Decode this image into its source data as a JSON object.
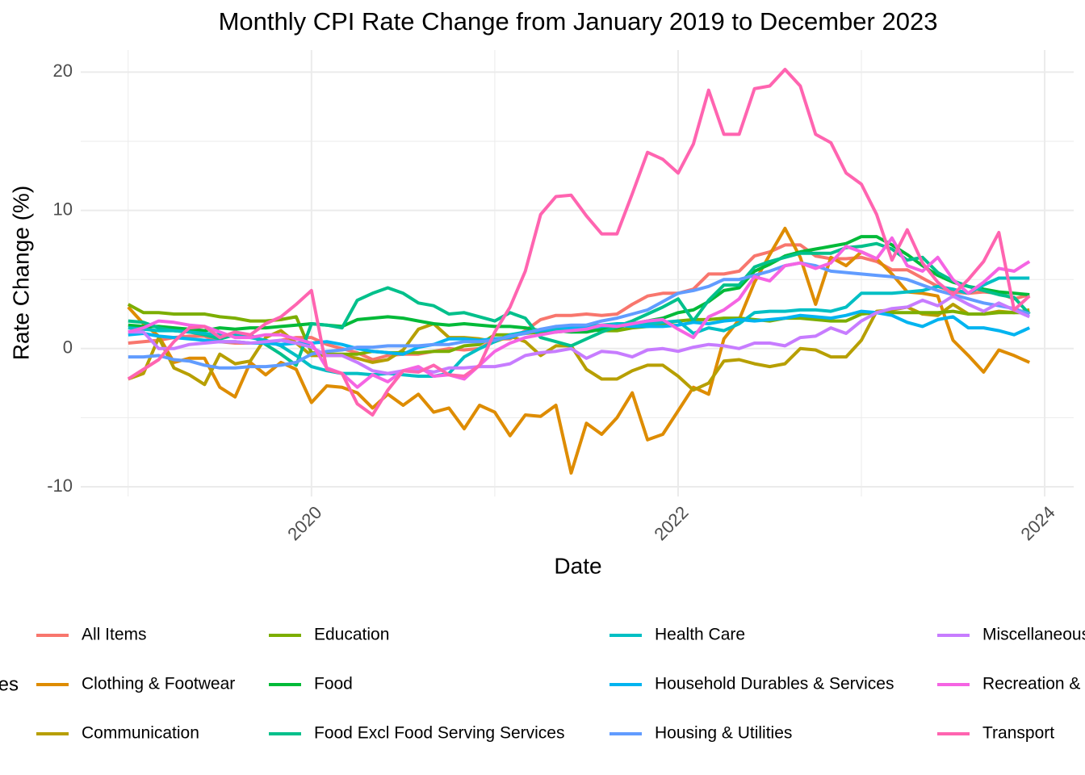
{
  "chart_data": {
    "type": "line",
    "title": "Monthly CPI Rate Change from January 2019 to December 2023",
    "x_label": "Date",
    "y_label": "Rate Change (%)",
    "legend_title": "Categories",
    "legend_position": "bottom",
    "grid": true,
    "xlim": [
      "2018-10",
      "2024-02"
    ],
    "ylim": [
      -10.7,
      21.6
    ],
    "xticks": [
      {
        "value": "2020-01",
        "label": "2020"
      },
      {
        "value": "2022-01",
        "label": "2022"
      },
      {
        "value": "2024-01",
        "label": "2024"
      }
    ],
    "x_minor_ticks": [
      "2019-01",
      "2021-01",
      "2023-01"
    ],
    "yticks": [
      -10,
      0,
      10,
      20
    ],
    "y_minor_ticks": [
      -5,
      5,
      15
    ],
    "x": [
      "2019-01",
      "2019-02",
      "2019-03",
      "2019-04",
      "2019-05",
      "2019-06",
      "2019-07",
      "2019-08",
      "2019-09",
      "2019-10",
      "2019-11",
      "2019-12",
      "2020-01",
      "2020-02",
      "2020-03",
      "2020-04",
      "2020-05",
      "2020-06",
      "2020-07",
      "2020-08",
      "2020-09",
      "2020-10",
      "2020-11",
      "2020-12",
      "2021-01",
      "2021-02",
      "2021-03",
      "2021-04",
      "2021-05",
      "2021-06",
      "2021-07",
      "2021-08",
      "2021-09",
      "2021-10",
      "2021-11",
      "2021-12",
      "2022-01",
      "2022-02",
      "2022-03",
      "2022-04",
      "2022-05",
      "2022-06",
      "2022-07",
      "2022-08",
      "2022-09",
      "2022-10",
      "2022-11",
      "2022-12",
      "2023-01",
      "2023-02",
      "2023-03",
      "2023-04",
      "2023-05",
      "2023-06",
      "2023-07",
      "2023-08",
      "2023-09",
      "2023-10",
      "2023-11",
      "2023-12"
    ],
    "series": [
      {
        "name": "All Items",
        "color": "#F8766D",
        "values": [
          0.4,
          0.5,
          0.6,
          0.8,
          0.9,
          0.9,
          0.5,
          0.4,
          0.4,
          0.4,
          0.6,
          0.8,
          0.8,
          0.3,
          0.0,
          -0.3,
          -0.8,
          -0.5,
          -0.4,
          -0.4,
          -0.2,
          0.0,
          -0.1,
          0.0,
          0.7,
          0.7,
          1.3,
          2.1,
          2.4,
          2.4,
          2.5,
          2.4,
          2.5,
          3.2,
          3.8,
          4.0,
          4.0,
          4.3,
          5.4,
          5.4,
          5.6,
          6.7,
          7.0,
          7.5,
          7.5,
          6.7,
          6.5,
          6.5,
          6.6,
          6.3,
          5.7,
          5.7,
          5.1,
          4.5,
          4.1,
          4.0,
          4.1,
          4.0,
          3.6,
          3.9
        ]
      },
      {
        "name": "Clothing & Footwear",
        "color": "#DE8C00",
        "values": [
          3.0,
          1.8,
          0.9,
          -1.0,
          -0.7,
          -0.7,
          -2.8,
          -3.5,
          -1.0,
          -1.9,
          -1.0,
          -1.5,
          -3.9,
          -2.7,
          -2.8,
          -3.2,
          -4.3,
          -3.3,
          -4.1,
          -3.3,
          -4.6,
          -4.3,
          -5.8,
          -4.1,
          -4.6,
          -6.3,
          -4.8,
          -4.9,
          -4.1,
          -9.0,
          -5.4,
          -6.2,
          -5.0,
          -3.2,
          -6.6,
          -6.2,
          -4.5,
          -2.8,
          -3.3,
          0.7,
          2.1,
          4.8,
          6.8,
          8.7,
          6.6,
          3.2,
          6.6,
          6.0,
          7.0,
          6.5,
          5.4,
          4.1,
          4.0,
          3.8,
          0.6,
          -0.5,
          -1.7,
          -0.1,
          -0.5,
          -1.0
        ]
      },
      {
        "name": "Communication",
        "color": "#B79F00",
        "values": [
          -2.2,
          -1.8,
          0.8,
          -1.4,
          -1.9,
          -2.6,
          -0.4,
          -1.1,
          -0.9,
          0.8,
          1.3,
          0.4,
          -0.5,
          -0.5,
          -0.5,
          -0.7,
          -1.0,
          -0.8,
          -0.1,
          1.4,
          1.8,
          0.8,
          0.8,
          0.7,
          0.5,
          0.9,
          0.5,
          -0.5,
          0.2,
          0.2,
          -1.5,
          -2.2,
          -2.2,
          -1.6,
          -1.2,
          -1.2,
          -2.0,
          -3.0,
          -2.5,
          -0.9,
          -0.8,
          -1.1,
          -1.3,
          -1.1,
          0.0,
          -0.1,
          -0.6,
          -0.6,
          0.6,
          2.7,
          2.8,
          3.0,
          2.5,
          2.4,
          3.2,
          2.5,
          2.5,
          2.7,
          2.6,
          2.8
        ]
      },
      {
        "name": "Education",
        "color": "#7CAE00",
        "values": [
          3.2,
          2.6,
          2.6,
          2.5,
          2.5,
          2.5,
          2.3,
          2.2,
          2.0,
          2.0,
          2.1,
          2.3,
          -0.3,
          -0.4,
          -0.4,
          -0.4,
          -0.2,
          -0.3,
          -0.3,
          -0.3,
          -0.2,
          -0.2,
          0.2,
          0.3,
          1.0,
          1.0,
          1.1,
          1.2,
          1.2,
          1.3,
          1.4,
          1.3,
          1.3,
          1.5,
          1.6,
          1.8,
          2.0,
          2.1,
          2.1,
          2.2,
          2.2,
          2.1,
          2.0,
          2.2,
          2.2,
          2.1,
          2.0,
          2.0,
          2.5,
          2.6,
          2.6,
          2.6,
          2.6,
          2.6,
          2.7,
          2.5,
          2.5,
          2.6,
          2.6,
          2.6
        ]
      },
      {
        "name": "Food",
        "color": "#00BA38",
        "values": [
          1.7,
          1.6,
          1.6,
          1.5,
          1.4,
          1.3,
          1.5,
          1.4,
          1.5,
          1.5,
          1.6,
          1.7,
          1.8,
          1.7,
          1.6,
          2.1,
          2.2,
          2.3,
          2.2,
          2.0,
          1.8,
          1.7,
          1.8,
          1.7,
          1.6,
          1.6,
          1.5,
          1.3,
          1.3,
          1.2,
          1.2,
          1.4,
          1.5,
          1.8,
          2.0,
          2.2,
          2.6,
          2.8,
          3.4,
          4.2,
          4.4,
          5.6,
          6.1,
          6.7,
          7.0,
          7.2,
          7.4,
          7.6,
          8.1,
          8.1,
          7.5,
          6.8,
          6.0,
          5.3,
          4.8,
          4.5,
          4.3,
          4.1,
          4.0,
          3.9
        ]
      },
      {
        "name": "Food Excl Food Serving Services",
        "color": "#00C08B",
        "values": [
          2.0,
          1.9,
          1.5,
          1.3,
          1.2,
          1.0,
          0.7,
          1.0,
          1.0,
          0.3,
          -0.4,
          -1.2,
          1.8,
          1.7,
          1.5,
          3.5,
          4.0,
          4.4,
          4.0,
          3.3,
          3.1,
          2.5,
          2.6,
          2.3,
          2.0,
          2.6,
          2.2,
          0.8,
          0.5,
          0.2,
          0.7,
          1.2,
          1.6,
          2.0,
          2.5,
          3.0,
          3.6,
          2.0,
          3.5,
          4.6,
          4.6,
          5.9,
          6.3,
          6.6,
          6.9,
          6.9,
          6.9,
          7.3,
          7.4,
          7.6,
          7.2,
          6.4,
          6.6,
          5.5,
          4.9,
          4.5,
          4.2,
          3.9,
          3.7,
          2.5
        ]
      },
      {
        "name": "Health Care",
        "color": "#00BFC4",
        "values": [
          1.5,
          1.4,
          1.3,
          1.3,
          1.2,
          1.1,
          1.0,
          1.0,
          0.8,
          0.6,
          0.2,
          -0.5,
          -1.3,
          -1.6,
          -1.8,
          -1.8,
          -1.9,
          -1.8,
          -1.9,
          -2.0,
          -2.0,
          -1.8,
          -0.6,
          0.0,
          0.5,
          1.0,
          1.2,
          1.3,
          1.4,
          1.5,
          1.6,
          1.7,
          1.8,
          1.8,
          1.8,
          1.9,
          2.0,
          1.1,
          1.5,
          1.3,
          1.8,
          2.6,
          2.7,
          2.7,
          2.8,
          2.8,
          2.7,
          3.0,
          4.0,
          4.0,
          4.0,
          4.1,
          4.2,
          4.5,
          4.3,
          4.0,
          4.6,
          5.1,
          5.1,
          5.1
        ]
      },
      {
        "name": "Household Durables & Services",
        "color": "#00B4F0",
        "values": [
          1.0,
          1.1,
          0.9,
          0.8,
          0.7,
          0.6,
          0.5,
          0.5,
          0.4,
          0.4,
          0.3,
          0.4,
          0.4,
          0.5,
          0.3,
          0.0,
          -0.2,
          -0.3,
          -0.4,
          0.1,
          0.3,
          0.7,
          0.7,
          0.6,
          0.7,
          0.8,
          1.2,
          1.3,
          1.6,
          1.5,
          1.5,
          1.6,
          1.7,
          1.6,
          1.6,
          1.6,
          1.7,
          1.9,
          1.8,
          2.0,
          2.1,
          2.0,
          2.1,
          2.2,
          2.4,
          2.3,
          2.2,
          2.4,
          2.7,
          2.6,
          2.4,
          1.9,
          1.6,
          2.1,
          2.3,
          1.5,
          1.5,
          1.3,
          1.0,
          1.5
        ]
      },
      {
        "name": "Housing & Utilities",
        "color": "#619CFF",
        "values": [
          -0.6,
          -0.6,
          -0.5,
          -0.8,
          -0.9,
          -1.2,
          -1.4,
          -1.4,
          -1.3,
          -1.3,
          -1.2,
          -1.0,
          -0.4,
          -0.2,
          -0.1,
          0.1,
          0.1,
          0.2,
          0.2,
          0.2,
          0.3,
          0.3,
          0.5,
          0.5,
          0.6,
          0.9,
          1.1,
          1.4,
          1.6,
          1.7,
          1.7,
          2.0,
          2.2,
          2.5,
          2.8,
          3.4,
          4.0,
          4.2,
          4.5,
          5.0,
          5.0,
          5.3,
          5.6,
          6.0,
          6.2,
          6.0,
          5.6,
          5.5,
          5.4,
          5.3,
          5.2,
          5.0,
          4.6,
          4.2,
          3.9,
          3.6,
          3.3,
          3.1,
          2.9,
          2.5
        ]
      },
      {
        "name": "Miscellaneous Goods & Services",
        "color": "#C77CFF",
        "values": [
          1.2,
          1.2,
          0.0,
          0.0,
          0.3,
          0.4,
          0.5,
          0.5,
          0.4,
          0.5,
          0.6,
          0.4,
          0.1,
          -0.5,
          -0.5,
          -1.0,
          -1.6,
          -1.8,
          -1.6,
          -1.5,
          -1.7,
          -1.4,
          -1.4,
          -1.3,
          -1.3,
          -1.1,
          -0.5,
          -0.3,
          -0.2,
          0.0,
          -0.7,
          -0.2,
          -0.3,
          -0.6,
          -0.1,
          0.0,
          -0.2,
          0.1,
          0.3,
          0.2,
          0.0,
          0.4,
          0.4,
          0.2,
          0.8,
          0.9,
          1.5,
          1.1,
          2.0,
          2.6,
          2.9,
          3.0,
          3.5,
          3.1,
          3.8,
          3.2,
          2.7,
          3.3,
          2.8,
          2.3
        ]
      },
      {
        "name": "Recreation & Culture",
        "color": "#F564E3",
        "values": [
          1.2,
          1.5,
          2.0,
          1.9,
          1.7,
          1.6,
          1.2,
          0.8,
          0.8,
          1.0,
          1.0,
          0.7,
          0.4,
          -1.4,
          -1.8,
          -2.8,
          -1.9,
          -2.4,
          -1.6,
          -1.3,
          -2.0,
          -1.9,
          -2.2,
          -1.2,
          -0.2,
          0.4,
          0.8,
          1.0,
          1.2,
          1.3,
          1.4,
          1.7,
          1.6,
          1.8,
          2.0,
          2.1,
          1.4,
          0.8,
          2.3,
          2.8,
          3.6,
          5.2,
          4.9,
          6.0,
          6.2,
          5.8,
          6.2,
          7.4,
          7.0,
          6.5,
          8.0,
          6.0,
          5.6,
          6.6,
          5.0,
          4.0,
          4.8,
          5.8,
          5.6,
          6.3
        ]
      },
      {
        "name": "Transport",
        "color": "#FF64B0",
        "values": [
          -2.2,
          -1.5,
          -0.8,
          0.5,
          1.5,
          1.6,
          0.8,
          1.2,
          1.0,
          1.8,
          2.3,
          3.2,
          4.2,
          -1.5,
          -1.8,
          -4.0,
          -4.8,
          -3.0,
          -1.6,
          -1.7,
          -1.2,
          -1.9,
          -2.0,
          -1.2,
          1.2,
          3.0,
          5.6,
          9.7,
          11.0,
          11.1,
          9.6,
          8.3,
          8.3,
          11.2,
          14.2,
          13.7,
          12.7,
          14.8,
          18.7,
          15.5,
          15.5,
          18.8,
          19.0,
          20.2,
          19.0,
          15.5,
          14.9,
          12.7,
          11.9,
          9.7,
          6.4,
          8.6,
          6.2,
          4.8,
          3.9,
          5.0,
          6.3,
          8.4,
          2.8,
          3.8
        ]
      }
    ]
  }
}
